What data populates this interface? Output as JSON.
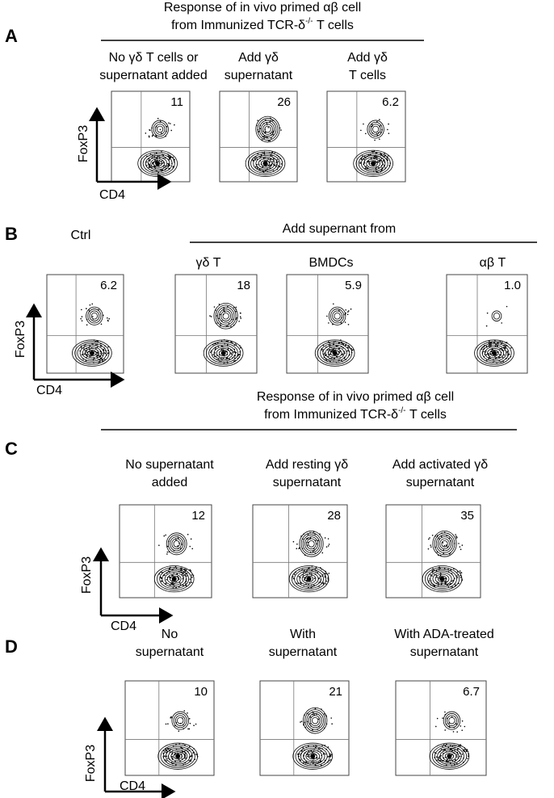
{
  "panels": [
    {
      "letter": "A",
      "header": {
        "line1": "Response of in vivo primed αβ cell",
        "line2": "from Immunized TCR-δ",
        "line2_sup": "-/-",
        "line2_end": " T cells"
      },
      "columns": [
        {
          "title": [
            "No γδ T cells or",
            "supernatant added"
          ],
          "value": "11"
        },
        {
          "title": [
            "Add γδ",
            "supernatant"
          ],
          "value": "26"
        },
        {
          "title": [
            "Add γδ",
            "T cells"
          ],
          "value": "6.2"
        }
      ],
      "y_label": "FoxP3",
      "x_label": "CD4"
    },
    {
      "letter": "B",
      "group_header": "Add supernant from",
      "columns": [
        {
          "title": [
            "Ctrl"
          ],
          "value": "6.2"
        },
        {
          "title": [
            "γδ T"
          ],
          "value": "18"
        },
        {
          "title": [
            "BMDCs"
          ],
          "value": "5.9"
        },
        {
          "title": [
            "αβ T"
          ],
          "value": "1.0"
        }
      ],
      "y_label": "FoxP3",
      "x_label": "CD4"
    },
    {
      "letter": "C",
      "header": {
        "line1": "Response of in vivo primed αβ cell",
        "line2": "from Immunized TCR-δ",
        "line2_sup": "-/-",
        "line2_end": " T cells"
      },
      "columns": [
        {
          "title": [
            "No supernatant",
            "added"
          ],
          "value": "12"
        },
        {
          "title": [
            "Add resting γδ",
            "supernatant"
          ],
          "value": "28"
        },
        {
          "title": [
            "Add activated γδ",
            "supernatant"
          ],
          "value": "35"
        }
      ],
      "y_label": "FoxP3",
      "x_label": "CD4"
    },
    {
      "letter": "D",
      "columns": [
        {
          "title": [
            "No",
            "supernatant"
          ],
          "value": "10"
        },
        {
          "title": [
            "With",
            "supernatant"
          ],
          "value": "21"
        },
        {
          "title": [
            "With ADA-treated",
            "supernatant"
          ],
          "value": "6.7"
        }
      ],
      "y_label": "FoxP3",
      "x_label": "CD4"
    }
  ]
}
